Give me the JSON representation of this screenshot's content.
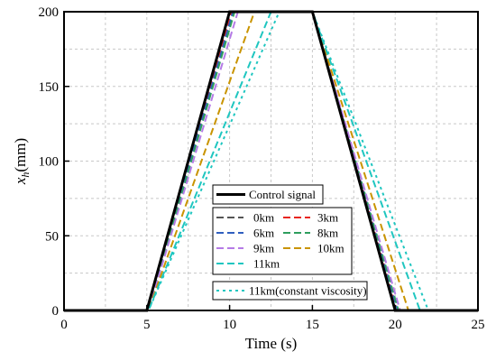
{
  "chart_data": {
    "type": "line",
    "xlabel": "Time (s)",
    "ylabel_main": "x",
    "ylabel_sub": "h",
    "ylabel_unit": "(mm)",
    "xlim": [
      0,
      25
    ],
    "ylim": [
      0,
      200
    ],
    "xticks": [
      0,
      5,
      10,
      15,
      20,
      25
    ],
    "yticks": [
      0,
      50,
      100,
      150,
      200
    ],
    "grid": true,
    "legend_position": "lower-center",
    "series": [
      {
        "name": "Control signal",
        "color": "#000000",
        "dash": "solid",
        "width": 3,
        "points": [
          [
            0,
            0
          ],
          [
            5,
            0
          ],
          [
            10,
            200
          ],
          [
            15,
            200
          ],
          [
            20,
            0
          ],
          [
            25,
            0
          ]
        ]
      },
      {
        "name": "0km",
        "color": "#555555",
        "dash": "8,4",
        "width": 2,
        "points": [
          [
            0,
            0
          ],
          [
            5,
            0
          ],
          [
            10.05,
            200
          ],
          [
            15,
            200
          ],
          [
            20.05,
            0
          ],
          [
            25,
            0
          ]
        ]
      },
      {
        "name": "3km",
        "color": "#e8251f",
        "dash": "8,4",
        "width": 2,
        "points": [
          [
            0,
            0
          ],
          [
            5.02,
            0
          ],
          [
            10.1,
            200
          ],
          [
            15,
            200
          ],
          [
            20.1,
            0
          ],
          [
            25,
            0
          ]
        ]
      },
      {
        "name": "6km",
        "color": "#2f5fbf",
        "dash": "8,4",
        "width": 2,
        "points": [
          [
            0,
            0
          ],
          [
            5.05,
            0
          ],
          [
            10.2,
            200
          ],
          [
            15,
            200
          ],
          [
            20.15,
            0
          ],
          [
            25,
            0
          ]
        ]
      },
      {
        "name": "8km",
        "color": "#2e9e5e",
        "dash": "8,4",
        "width": 2,
        "points": [
          [
            0,
            0
          ],
          [
            5.07,
            0
          ],
          [
            10.3,
            200
          ],
          [
            15,
            200
          ],
          [
            20.2,
            0
          ],
          [
            25,
            0
          ]
        ]
      },
      {
        "name": "9km",
        "color": "#b57be6",
        "dash": "8,4",
        "width": 2,
        "points": [
          [
            0,
            0
          ],
          [
            5.1,
            0
          ],
          [
            10.5,
            200
          ],
          [
            15,
            200
          ],
          [
            20.3,
            0
          ],
          [
            25,
            0
          ]
        ]
      },
      {
        "name": "10km",
        "color": "#c99400",
        "dash": "8,4",
        "width": 2,
        "points": [
          [
            0,
            0
          ],
          [
            5.1,
            0
          ],
          [
            11.5,
            200
          ],
          [
            15,
            200
          ],
          [
            20.8,
            0
          ],
          [
            25,
            0
          ]
        ]
      },
      {
        "name": "11km",
        "color": "#1fc6c0",
        "dash": "8,4",
        "width": 2,
        "points": [
          [
            0,
            0
          ],
          [
            5.1,
            0
          ],
          [
            12.5,
            200
          ],
          [
            15,
            200
          ],
          [
            21.5,
            0
          ],
          [
            25,
            0
          ]
        ]
      },
      {
        "name": "11km(constant viscosity)",
        "color": "#1fc6c0",
        "dash": "3,4",
        "width": 2,
        "points": [
          [
            0,
            0
          ],
          [
            5.1,
            0
          ],
          [
            13,
            200
          ],
          [
            15,
            200
          ],
          [
            22,
            0
          ],
          [
            25,
            0
          ]
        ]
      }
    ]
  }
}
